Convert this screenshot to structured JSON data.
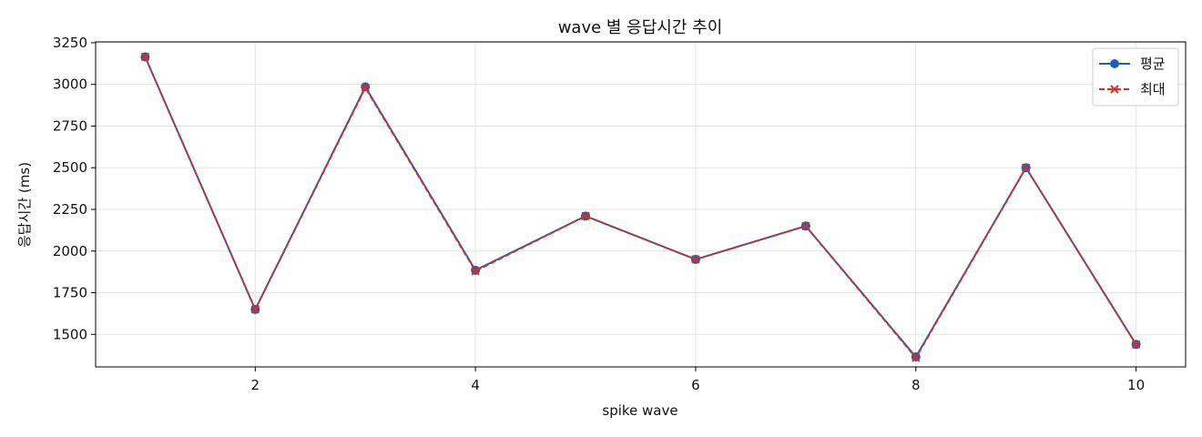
{
  "chart_data": {
    "type": "line",
    "title": "wave 별 응답시간 추이",
    "xlabel": "spike wave",
    "ylabel": "응답시간 (ms)",
    "x": [
      1,
      2,
      3,
      4,
      5,
      6,
      7,
      8,
      9,
      10
    ],
    "xlim": [
      0.55,
      10.45
    ],
    "ylim": [
      1305,
      3255
    ],
    "xticks": [
      2,
      4,
      6,
      8,
      10
    ],
    "yticks": [
      1500,
      1750,
      2000,
      2250,
      2500,
      2750,
      3000,
      3250
    ],
    "grid": true,
    "legend_position": "top-right",
    "series": [
      {
        "name": "평균",
        "values": [
          3165,
          1650,
          2985,
          1885,
          2210,
          1950,
          2150,
          1365,
          2500,
          1440
        ],
        "color": "#1f5fb4",
        "marker": "circle",
        "linestyle": "solid"
      },
      {
        "name": "최대",
        "values": [
          3165,
          1650,
          2980,
          1880,
          2210,
          1950,
          2150,
          1360,
          2500,
          1440
        ],
        "color": "#d0312d",
        "marker": "x",
        "linestyle": "dashed"
      }
    ]
  }
}
